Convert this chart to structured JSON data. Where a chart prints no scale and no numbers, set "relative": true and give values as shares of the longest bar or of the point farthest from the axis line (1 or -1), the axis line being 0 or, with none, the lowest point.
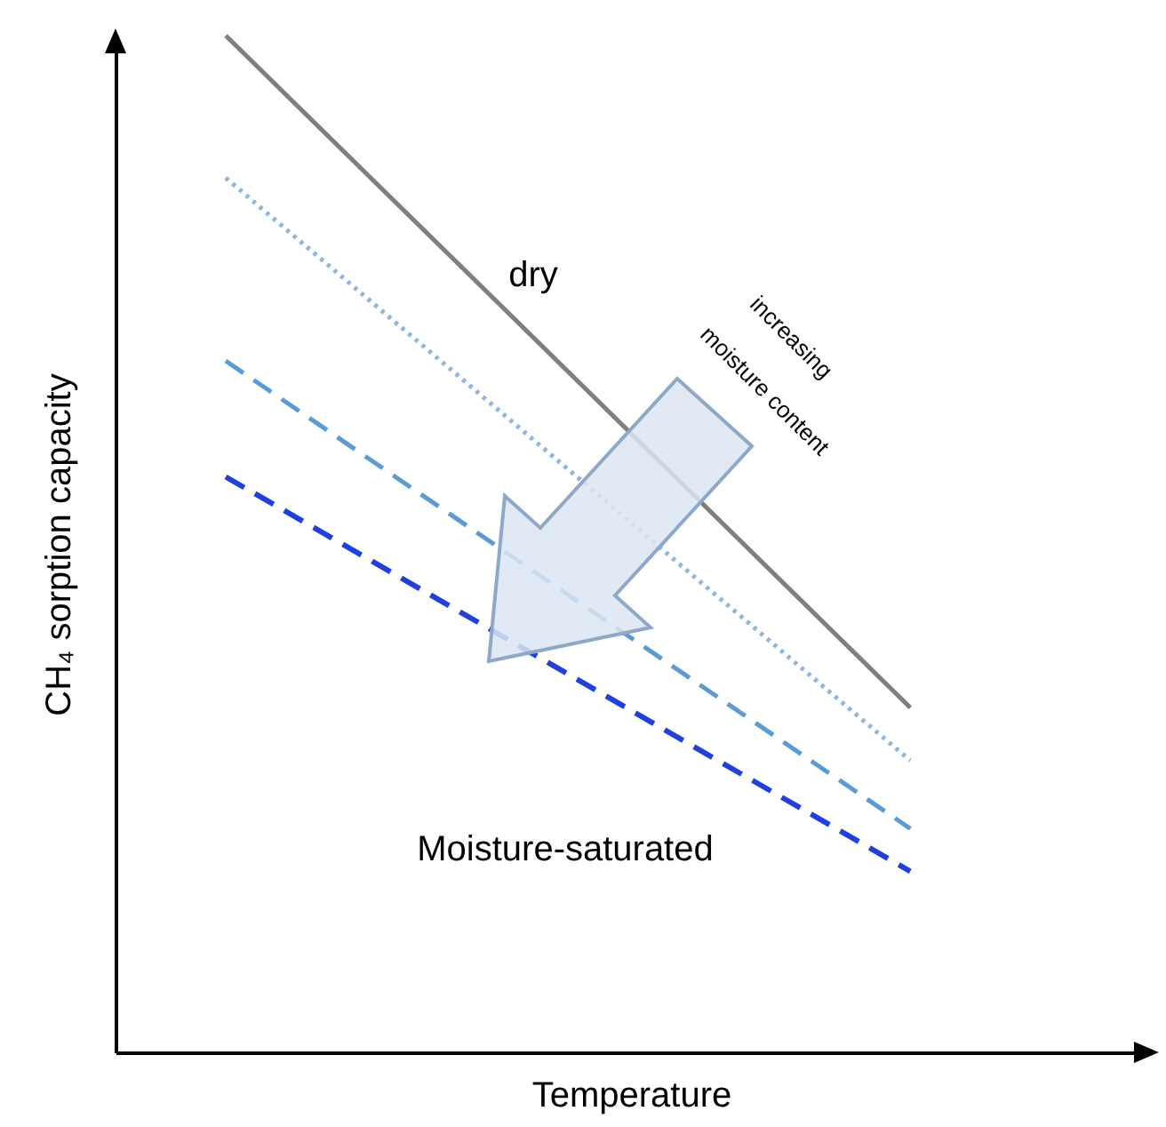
{
  "chart_data": {
    "type": "line",
    "relative": true,
    "xlabel": "Temperature",
    "ylabel": "CH₄ sorption capacity",
    "categories": [
      null,
      null
    ],
    "series": [
      {
        "name": "dry",
        "color": "#7f7f7f",
        "line_style": "solid",
        "values": [
          1,
          0.339
        ]
      },
      {
        "color": "#8fb4e3",
        "line_style": "dotted",
        "values": [
          0.86,
          0.287
        ]
      },
      {
        "color": "#5b9bd5",
        "line_style": "dashed",
        "values": [
          0.68,
          0.22
        ]
      },
      {
        "name": "Moisture-saturated",
        "color": "#1f3fe0",
        "line_style": "dashed",
        "values": [
          0.566,
          0.178
        ]
      }
    ],
    "annotations": [
      "increasing",
      "moisture content"
    ]
  }
}
